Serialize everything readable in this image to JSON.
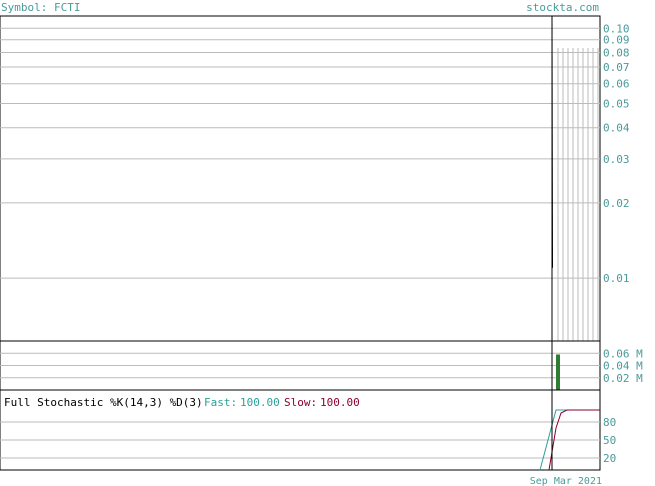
{
  "header": {
    "symbol": "Symbol: FCTI",
    "site": "stockta.com"
  },
  "colors": {
    "teal": "#4a9a9a",
    "grid": "#bbbbbb",
    "frame": "#000000",
    "volume_bar": "#2e7d32",
    "fast_line": "#2aa198",
    "slow_line": "#8b0033"
  },
  "chart_data": [
    {
      "type": "line",
      "title": "",
      "y_scale": "log",
      "y_ticks": [
        "0.10",
        "0.09",
        "0.08",
        "0.07",
        "0.06",
        "0.05",
        "0.04",
        "0.03",
        "0.02",
        "0.01"
      ],
      "ylim": [
        0.0056,
        0.112
      ],
      "series": [
        {
          "values": [
            0.112,
            0.011
          ]
        }
      ],
      "grid": true
    },
    {
      "type": "bar",
      "y_ticks": [
        "0.06 M",
        "0.04 M",
        "0.02 M"
      ],
      "ylim": [
        0,
        0.08
      ],
      "values": [
        0.058
      ],
      "grid": true
    },
    {
      "type": "line",
      "title": "Full Stochastic %K(14,3) %D(3)",
      "fast_label": "Fast:",
      "fast_value": "100.00",
      "slow_label": "Slow:",
      "slow_value": "100.00",
      "y_ticks": [
        "80",
        "50",
        "20"
      ],
      "ylim": [
        0,
        100
      ],
      "series": [
        {
          "name": "Fast",
          "values": [
            0,
            100,
            100,
            100,
            100,
            100,
            100
          ]
        },
        {
          "name": "Slow",
          "values": [
            0,
            70,
            95,
            100,
            100,
            100,
            100
          ]
        }
      ],
      "x_tick_text": "Sep Mar 2021",
      "grid": true
    }
  ]
}
